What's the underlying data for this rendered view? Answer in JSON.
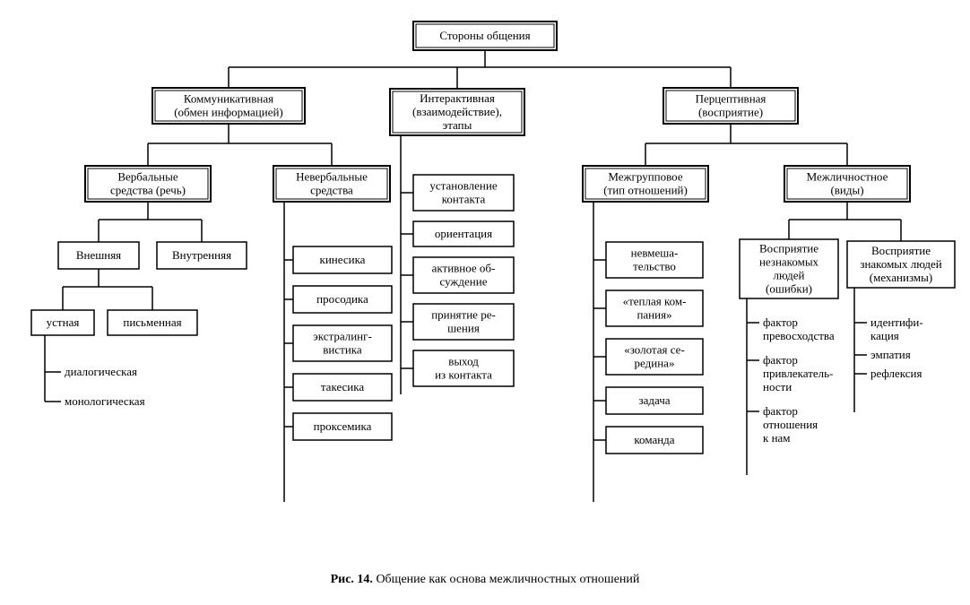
{
  "type": "tree",
  "background_color": "#ffffff",
  "stroke_color": "#000000",
  "font_family": "Times New Roman",
  "font_size_node": 13,
  "font_size_caption": 14,
  "caption": {
    "bold": "Рис. 14.",
    "text": "Общение как основа межличностных отношений"
  },
  "root": {
    "lines": [
      "Стороны общения"
    ],
    "border": "double"
  },
  "branch_comm": {
    "lines": [
      "Коммуникативная",
      "(обмен информацией)"
    ],
    "border": "double"
  },
  "branch_inter": {
    "lines": [
      "Интерактивная",
      "(взаимодействие),",
      "этапы"
    ],
    "border": "double"
  },
  "branch_perc": {
    "lines": [
      "Перцептивная",
      "(восприятие)"
    ],
    "border": "double"
  },
  "verbal": {
    "lines": [
      "Вербальные",
      "средства (речь)"
    ],
    "border": "double"
  },
  "nonverbal": {
    "lines": [
      "Невербальные",
      "средства"
    ],
    "border": "double"
  },
  "v_ext": {
    "lines": [
      "Внешняя"
    ],
    "border": "single"
  },
  "v_int": {
    "lines": [
      "Внутренняя"
    ],
    "border": "single"
  },
  "v_oral": {
    "lines": [
      "устная"
    ],
    "border": "single"
  },
  "v_written": {
    "lines": [
      "письменная"
    ],
    "border": "single"
  },
  "v_bullets": [
    "диалогическая",
    "монологическая"
  ],
  "nv_items": [
    {
      "lines": [
        "кинесика"
      ]
    },
    {
      "lines": [
        "просодика"
      ]
    },
    {
      "lines": [
        "экстралинг-",
        "вистика"
      ]
    },
    {
      "lines": [
        "такесика"
      ]
    },
    {
      "lines": [
        "проксемика"
      ]
    }
  ],
  "inter_items": [
    {
      "lines": [
        "установление",
        "контакта"
      ]
    },
    {
      "lines": [
        "ориентация"
      ]
    },
    {
      "lines": [
        "активное об-",
        "суждение"
      ]
    },
    {
      "lines": [
        "принятие ре-",
        "шения"
      ]
    },
    {
      "lines": [
        "выход",
        "из контакта"
      ]
    }
  ],
  "intergroup": {
    "lines": [
      "Межгрупповое",
      "(тип отношений)"
    ],
    "border": "double"
  },
  "interpersonal": {
    "lines": [
      "Межличностное",
      "(виды)"
    ],
    "border": "double"
  },
  "ig_items": [
    {
      "lines": [
        "невмеша-",
        "тельство"
      ]
    },
    {
      "lines": [
        "«теплая ком-",
        "пания»"
      ]
    },
    {
      "lines": [
        "«золотая се-",
        "редина»"
      ]
    },
    {
      "lines": [
        "задача"
      ]
    },
    {
      "lines": [
        "команда"
      ]
    }
  ],
  "ip_unknown": {
    "lines": [
      "Восприятие",
      "незнакомых",
      "людей",
      "(ошибки)"
    ],
    "border": "single"
  },
  "ip_known": {
    "lines": [
      "Восприятие",
      "знакомых людей",
      "(механизмы)"
    ],
    "border": "single"
  },
  "ip_unknown_bullets": [
    [
      "фактор",
      "превосходства"
    ],
    [
      "фактор",
      "привлекатель-",
      "ности"
    ],
    [
      "фактор",
      "отношения",
      "к нам"
    ]
  ],
  "ip_known_bullets": [
    [
      "идентифи-",
      "кация"
    ],
    [
      "эмпатия"
    ],
    [
      "рефлексия"
    ]
  ]
}
